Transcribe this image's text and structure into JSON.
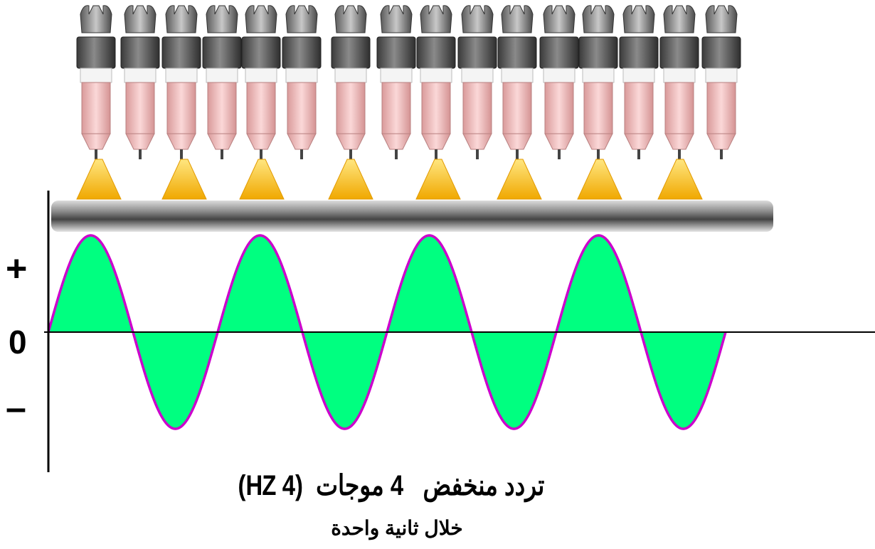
{
  "diagram": {
    "signs": {
      "plus": "+",
      "zero": "0",
      "minus": "–"
    },
    "caption": {
      "line1": "تردد منخفض   4 موجات  (4 HZ)",
      "line2": "خلال ثانية واحدة"
    },
    "wave": {
      "cycles": 4,
      "frequency_hz": 4,
      "fill_color": "#00ff80",
      "outline_color": "#cc00cc"
    },
    "torches": {
      "count": 16,
      "arcs_count": 8,
      "arc_color": "#f6b400"
    },
    "colors": {
      "axis": "#000000",
      "torch_body": "#f2b9b9",
      "torch_collar": "#555555",
      "workpiece": "#6e6e6e"
    }
  }
}
